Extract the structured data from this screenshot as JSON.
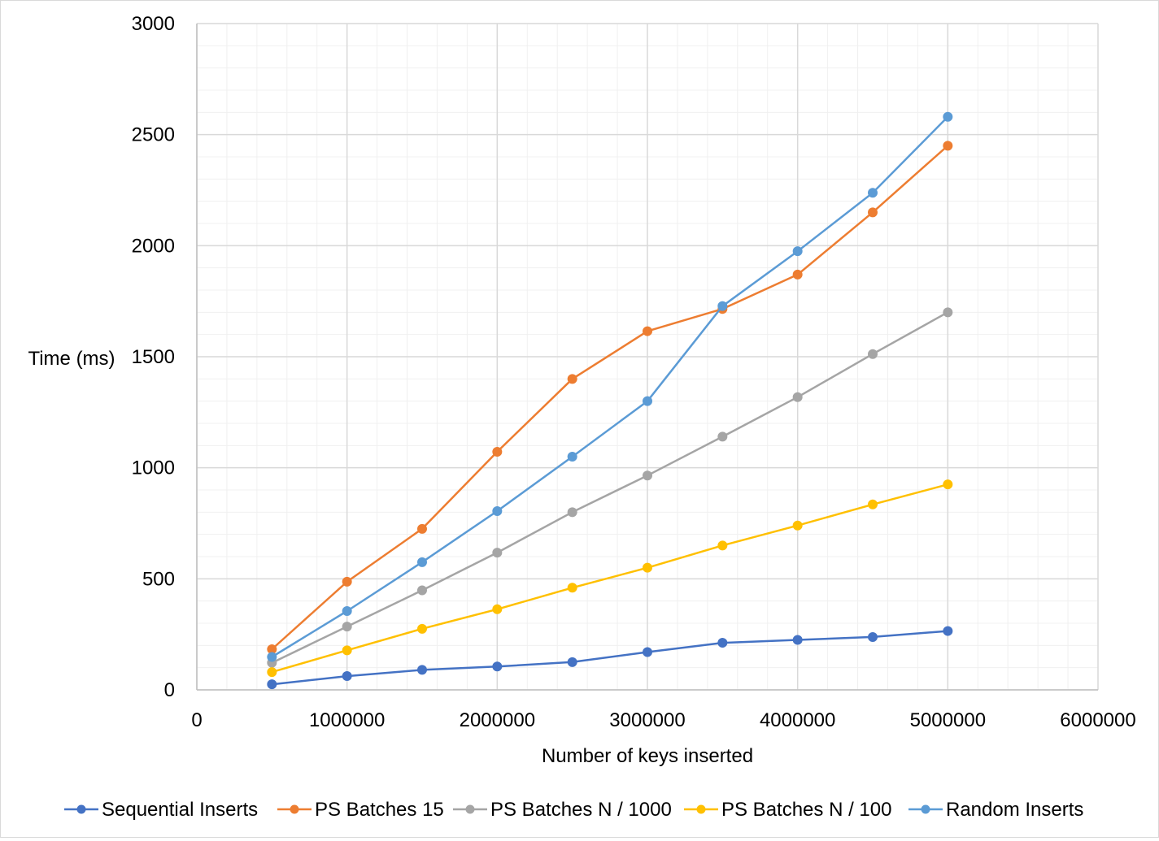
{
  "chart_data": {
    "type": "line",
    "title": "",
    "xlabel": "Number of keys inserted",
    "ylabel": "Time (ms)",
    "xlim": [
      0,
      6000000
    ],
    "ylim": [
      0,
      3000
    ],
    "x_ticks": [
      0,
      1000000,
      2000000,
      3000000,
      4000000,
      5000000,
      6000000
    ],
    "x_tick_labels": [
      "0",
      "1000000",
      "2000000",
      "3000000",
      "4000000",
      "5000000",
      "6000000"
    ],
    "y_ticks": [
      0,
      500,
      1000,
      1500,
      2000,
      2500,
      3000
    ],
    "y_tick_labels": [
      "0",
      "500",
      "1000",
      "1500",
      "2000",
      "2500",
      "3000"
    ],
    "grid": true,
    "minor_grid": true,
    "legend_position": "bottom",
    "x": [
      500000,
      1000000,
      1500000,
      2000000,
      2500000,
      3000000,
      3500000,
      4000000,
      4500000,
      5000000
    ],
    "series": [
      {
        "name": "Sequential Inserts",
        "color": "#4472C4",
        "values": [
          25,
          62,
          90,
          105,
          125,
          170,
          212,
          225,
          238,
          265
        ]
      },
      {
        "name": "PS Batches 15",
        "color": "#ED7D31",
        "values": [
          183,
          487,
          725,
          1072,
          1400,
          1615,
          1715,
          1870,
          2150,
          2450
        ]
      },
      {
        "name": "PS Batches N / 1000",
        "color": "#A5A5A5",
        "values": [
          122,
          285,
          448,
          618,
          800,
          965,
          1140,
          1318,
          1512,
          1700
        ]
      },
      {
        "name": "PS Batches N / 100",
        "color": "#FFC000",
        "values": [
          80,
          178,
          275,
          363,
          460,
          550,
          650,
          740,
          835,
          925
        ]
      },
      {
        "name": "Random Inserts",
        "color": "#5B9BD5",
        "values": [
          148,
          355,
          575,
          805,
          1050,
          1300,
          1728,
          1975,
          2238,
          2580
        ]
      }
    ]
  }
}
